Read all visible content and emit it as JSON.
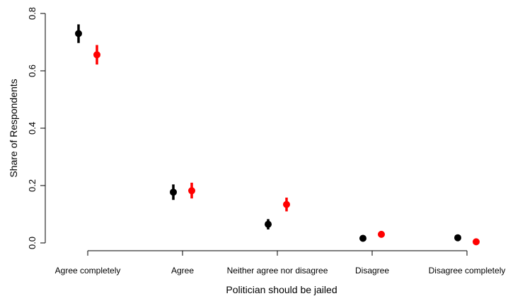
{
  "chart_data": {
    "type": "scatter",
    "title": "",
    "xlabel": "Politician should be jailed",
    "ylabel": "Share of Respondents",
    "categories": [
      "Agree completely",
      "Agree",
      "Neither agree nor disagree",
      "Disagree",
      "Disagree completely"
    ],
    "ylim": [
      0,
      0.8
    ],
    "yticks": [
      "0.0",
      "0.2",
      "0.4",
      "0.6",
      "0.8"
    ],
    "grid": false,
    "legend": "none",
    "series": [
      {
        "color": "#000000",
        "values": [
          0.73,
          0.177,
          0.065,
          0.016,
          0.018
        ],
        "lower": [
          0.697,
          0.15,
          0.047,
          0.01,
          0.012
        ],
        "upper": [
          0.762,
          0.204,
          0.083,
          0.022,
          0.024
        ]
      },
      {
        "color": "#ff0000",
        "values": [
          0.656,
          0.182,
          0.134,
          0.03,
          0.004
        ],
        "lower": [
          0.622,
          0.155,
          0.11,
          0.02,
          0.001
        ],
        "upper": [
          0.69,
          0.21,
          0.158,
          0.04,
          0.007
        ]
      }
    ]
  }
}
